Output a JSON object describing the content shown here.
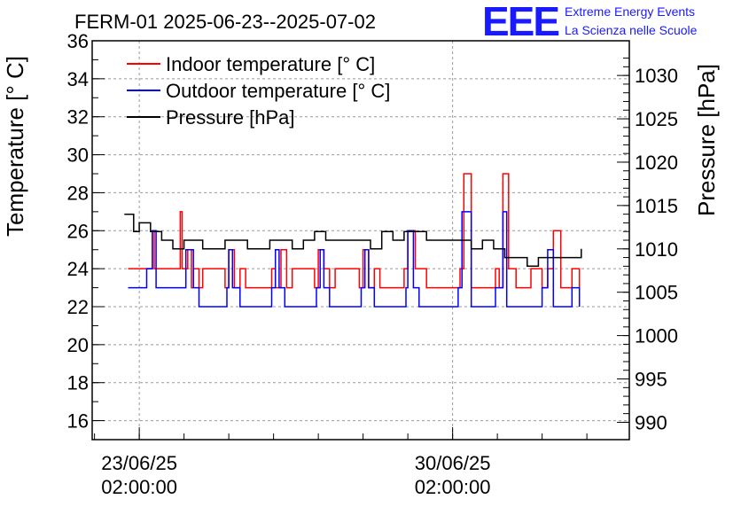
{
  "chart_data": {
    "type": "line",
    "title": "FERM-01 2025-06-23--2025-07-02",
    "ylabel": "Temperature [° C]",
    "y2label": "Pressure [hPa]",
    "ylim": [
      15,
      36
    ],
    "y2lim": [
      988,
      1034
    ],
    "yticks": [
      "16",
      "18",
      "20",
      "22",
      "24",
      "26",
      "28",
      "30",
      "32",
      "34",
      "36"
    ],
    "y2ticks": [
      "990",
      "995",
      "1000",
      "1005",
      "1010",
      "1015",
      "1020",
      "1025",
      "1030"
    ],
    "xticks": [
      {
        "date": "2025-06-23 02:00",
        "line1": "23/06/25",
        "line2": "02:00:00"
      },
      {
        "date": "2025-06-30 02:00",
        "line1": "30/06/25",
        "line2": "02:00:00"
      }
    ],
    "xlim": [
      "2025-06-22 00:45",
      "2025-07-04 00:45"
    ],
    "grid": true,
    "legend_position": "top-left",
    "branding": {
      "logo_text": "EEE",
      "line1": "Extreme Energy Events",
      "line2": "La Scienza nelle Scuole"
    },
    "series": [
      {
        "name": "Indoor temperature [° C]",
        "axis": "left",
        "color": "#ff0000",
        "x": [
          "2025-06-22 20:00",
          "2025-06-23 06:00",
          "2025-06-23 09:00",
          "2025-06-23 10:00",
          "2025-06-23 12:00",
          "2025-06-23 22:00",
          "2025-06-24 00:00",
          "2025-06-24 01:00",
          "2025-06-24 04:00",
          "2025-06-24 06:00",
          "2025-06-24 07:00",
          "2025-06-24 10:00",
          "2025-06-24 12:00",
          "2025-06-25 00:00",
          "2025-06-25 02:00",
          "2025-06-25 05:00",
          "2025-06-25 08:00",
          "2025-06-25 11:00",
          "2025-06-26 01:00",
          "2025-06-26 03:00",
          "2025-06-26 06:00",
          "2025-06-26 09:00",
          "2025-06-26 12:00",
          "2025-06-27 00:00",
          "2025-06-27 02:00",
          "2025-06-27 05:00",
          "2025-06-27 08:00",
          "2025-06-27 11:00",
          "2025-06-28 00:00",
          "2025-06-28 02:00",
          "2025-06-28 05:00",
          "2025-06-28 08:00",
          "2025-06-28 11:00",
          "2025-06-29 00:00",
          "2025-06-29 02:00",
          "2025-06-29 06:00",
          "2025-06-29 12:00",
          "2025-06-29 20:00",
          "2025-06-30 04:00",
          "2025-06-30 06:00",
          "2025-06-30 08:00",
          "2025-06-30 12:00",
          "2025-06-30 20:00",
          "2025-07-01 01:00",
          "2025-07-01 03:00",
          "2025-07-01 05:00",
          "2025-07-01 08:00",
          "2025-07-01 12:00",
          "2025-07-01 20:00",
          "2025-07-02 02:00",
          "2025-07-02 05:00",
          "2025-07-02 08:00",
          "2025-07-02 12:00",
          "2025-07-02 18:00",
          "2025-07-02 22:00"
        ],
        "y": [
          24,
          24,
          26,
          24,
          24,
          24,
          27,
          24,
          25,
          23,
          24,
          23,
          24,
          23,
          25,
          23,
          24,
          23,
          24,
          23,
          25,
          23,
          24,
          23,
          25,
          24,
          23,
          24,
          23,
          25,
          23,
          24,
          23,
          24,
          26,
          24,
          23,
          23,
          23,
          24,
          29,
          23,
          23,
          24,
          23,
          29,
          24,
          23,
          24,
          23,
          24,
          26,
          23,
          24,
          23
        ]
      },
      {
        "name": "Outdoor temperature [° C]",
        "axis": "left",
        "color": "#0000ff",
        "x": [
          "2025-06-22 20:00",
          "2025-06-23 04:00",
          "2025-06-23 06:00",
          "2025-06-23 09:00",
          "2025-06-23 11:00",
          "2025-06-23 16:00",
          "2025-06-24 00:00",
          "2025-06-24 01:00",
          "2025-06-24 03:00",
          "2025-06-24 07:00",
          "2025-06-24 10:00",
          "2025-06-24 16:00",
          "2025-06-25 01:00",
          "2025-06-25 02:00",
          "2025-06-25 04:00",
          "2025-06-25 08:00",
          "2025-06-25 16:00",
          "2025-06-26 01:00",
          "2025-06-26 03:00",
          "2025-06-26 05:00",
          "2025-06-26 08:00",
          "2025-06-26 16:00",
          "2025-06-27 01:00",
          "2025-06-27 03:00",
          "2025-06-27 05:00",
          "2025-06-27 08:00",
          "2025-06-27 16:00",
          "2025-06-28 01:00",
          "2025-06-28 03:00",
          "2025-06-28 05:00",
          "2025-06-28 08:00",
          "2025-06-28 16:00",
          "2025-06-29 01:00",
          "2025-06-29 02:00",
          "2025-06-29 05:00",
          "2025-06-29 08:00",
          "2025-06-29 16:00",
          "2025-06-30 03:00",
          "2025-06-30 05:00",
          "2025-06-30 07:00",
          "2025-06-30 12:00",
          "2025-06-30 18:00",
          "2025-07-01 01:00",
          "2025-07-01 05:00",
          "2025-07-01 07:00",
          "2025-07-01 12:00",
          "2025-07-01 18:00",
          "2025-07-02 02:00",
          "2025-07-02 05:00",
          "2025-07-02 08:00",
          "2025-07-02 12:00",
          "2025-07-02 18:00",
          "2025-07-02 22:00"
        ],
        "y": [
          23,
          23,
          24,
          26,
          23,
          23,
          23,
          23,
          25,
          23,
          22,
          22,
          23,
          25,
          23,
          22,
          22,
          23,
          25,
          23,
          22,
          22,
          23,
          25,
          23,
          22,
          22,
          23,
          25,
          23,
          22,
          22,
          23,
          26,
          23,
          22,
          22,
          22,
          23,
          27,
          22,
          22,
          23,
          27,
          22,
          22,
          22,
          23,
          25,
          22,
          22,
          23,
          22
        ]
      },
      {
        "name": "Pressure [hPa]",
        "axis": "right",
        "color": "#000000",
        "x": [
          "2025-06-22 18:00",
          "2025-06-22 23:00",
          "2025-06-23 02:00",
          "2025-06-23 08:00",
          "2025-06-23 14:00",
          "2025-06-23 20:00",
          "2025-06-24 02:00",
          "2025-06-24 06:00",
          "2025-06-24 12:00",
          "2025-06-24 18:00",
          "2025-06-25 00:00",
          "2025-06-25 06:00",
          "2025-06-25 12:00",
          "2025-06-25 18:00",
          "2025-06-26 00:00",
          "2025-06-26 06:00",
          "2025-06-26 12:00",
          "2025-06-26 18:00",
          "2025-06-27 00:00",
          "2025-06-27 06:00",
          "2025-06-27 12:00",
          "2025-06-27 18:00",
          "2025-06-28 00:00",
          "2025-06-28 06:00",
          "2025-06-28 12:00",
          "2025-06-28 18:00",
          "2025-06-29 00:00",
          "2025-06-29 06:00",
          "2025-06-29 12:00",
          "2025-06-29 18:00",
          "2025-06-30 00:00",
          "2025-06-30 06:00",
          "2025-06-30 12:00",
          "2025-06-30 18:00",
          "2025-07-01 00:00",
          "2025-07-01 06:00",
          "2025-07-01 12:00",
          "2025-07-01 18:00",
          "2025-07-02 00:00",
          "2025-07-02 06:00",
          "2025-07-02 12:00",
          "2025-07-02 18:00",
          "2025-07-02 23:00"
        ],
        "y": [
          1014,
          1012,
          1013,
          1012,
          1011,
          1010,
          1011,
          1011,
          1010,
          1010,
          1011,
          1011,
          1010,
          1010,
          1011,
          1011,
          1010,
          1011,
          1012,
          1011,
          1011,
          1011,
          1011,
          1010,
          1012,
          1011,
          1012,
          1012,
          1011,
          1011,
          1011,
          1011,
          1010,
          1011,
          1010,
          1009,
          1009,
          1008,
          1009,
          1009,
          1009,
          1009,
          1010
        ]
      }
    ]
  }
}
